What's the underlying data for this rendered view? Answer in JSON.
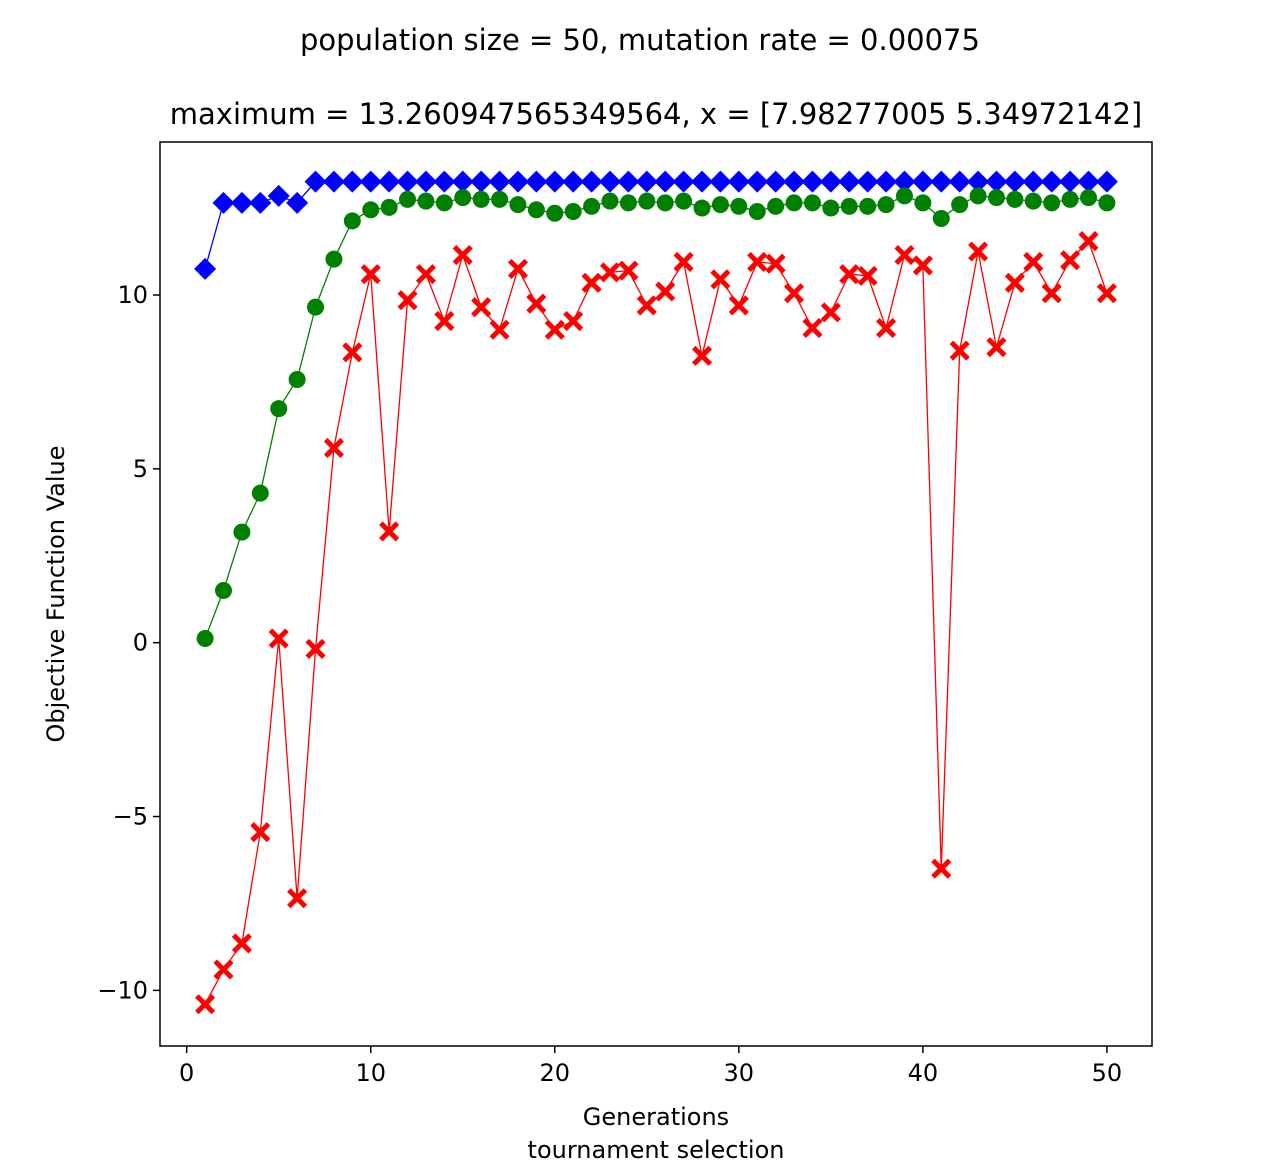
{
  "chart_data": {
    "type": "line",
    "title": "population size = 50, mutation rate = 0.00075",
    "subtitle": "maximum = 13.260947565349564, x = [7.98277005 5.34972142]",
    "xlabel": "Generations",
    "xlabel2": "tournament selection",
    "ylabel": "Objective Function Value",
    "xlim": [
      -1.45,
      52.45
    ],
    "ylim": [
      -11.6,
      14.4
    ],
    "xticks": [
      0,
      10,
      20,
      30,
      40,
      50
    ],
    "xtick_labels": [
      "0",
      "10",
      "20",
      "30",
      "40",
      "50"
    ],
    "yticks": [
      -10,
      -5,
      0,
      5,
      10
    ],
    "ytick_labels": [
      "−10",
      "−5",
      "0",
      "5",
      "10"
    ],
    "grid": false,
    "legend": null,
    "x": [
      1,
      2,
      3,
      4,
      5,
      6,
      7,
      8,
      9,
      10,
      11,
      12,
      13,
      14,
      15,
      16,
      17,
      18,
      19,
      20,
      21,
      22,
      23,
      24,
      25,
      26,
      27,
      28,
      29,
      30,
      31,
      32,
      33,
      34,
      35,
      36,
      37,
      38,
      39,
      40,
      41,
      42,
      43,
      44,
      45,
      46,
      47,
      48,
      49,
      50
    ],
    "series": [
      {
        "color": "#0000ff",
        "marker": "diamond",
        "values": [
          10.75,
          12.65,
          12.65,
          12.65,
          12.85,
          12.65,
          13.26,
          13.26,
          13.26,
          13.26,
          13.26,
          13.26,
          13.26,
          13.26,
          13.26,
          13.26,
          13.26,
          13.26,
          13.26,
          13.26,
          13.26,
          13.26,
          13.26,
          13.26,
          13.26,
          13.26,
          13.26,
          13.26,
          13.26,
          13.26,
          13.26,
          13.26,
          13.26,
          13.26,
          13.26,
          13.26,
          13.26,
          13.26,
          13.26,
          13.26,
          13.26,
          13.26,
          13.26,
          13.26,
          13.26,
          13.26,
          13.26,
          13.26,
          13.26,
          13.26
        ]
      },
      {
        "color": "#008000",
        "marker": "circle",
        "values": [
          0.12,
          1.5,
          3.18,
          4.3,
          6.73,
          7.57,
          9.65,
          11.03,
          12.13,
          12.45,
          12.52,
          12.75,
          12.7,
          12.65,
          12.8,
          12.75,
          12.75,
          12.6,
          12.45,
          12.35,
          12.4,
          12.55,
          12.7,
          12.65,
          12.7,
          12.65,
          12.7,
          12.5,
          12.6,
          12.55,
          12.4,
          12.55,
          12.65,
          12.65,
          12.5,
          12.55,
          12.55,
          12.6,
          12.85,
          12.65,
          12.2,
          12.6,
          12.85,
          12.8,
          12.75,
          12.7,
          12.65,
          12.75,
          12.8,
          12.65
        ]
      },
      {
        "color": "#ff0000",
        "marker": "x",
        "values": [
          -10.4,
          -9.4,
          -8.65,
          -5.45,
          0.12,
          -7.35,
          -0.18,
          5.6,
          8.35,
          10.6,
          3.2,
          9.85,
          10.6,
          9.25,
          11.15,
          9.65,
          9.0,
          10.75,
          9.75,
          9.0,
          9.25,
          10.35,
          10.65,
          10.7,
          9.7,
          10.1,
          10.95,
          8.25,
          10.45,
          9.7,
          10.95,
          10.9,
          10.05,
          9.05,
          9.5,
          10.6,
          10.55,
          9.05,
          11.15,
          10.85,
          -6.5,
          8.4,
          11.25,
          8.5,
          10.35,
          10.95,
          10.05,
          11.0,
          11.55,
          10.05
        ]
      }
    ]
  }
}
